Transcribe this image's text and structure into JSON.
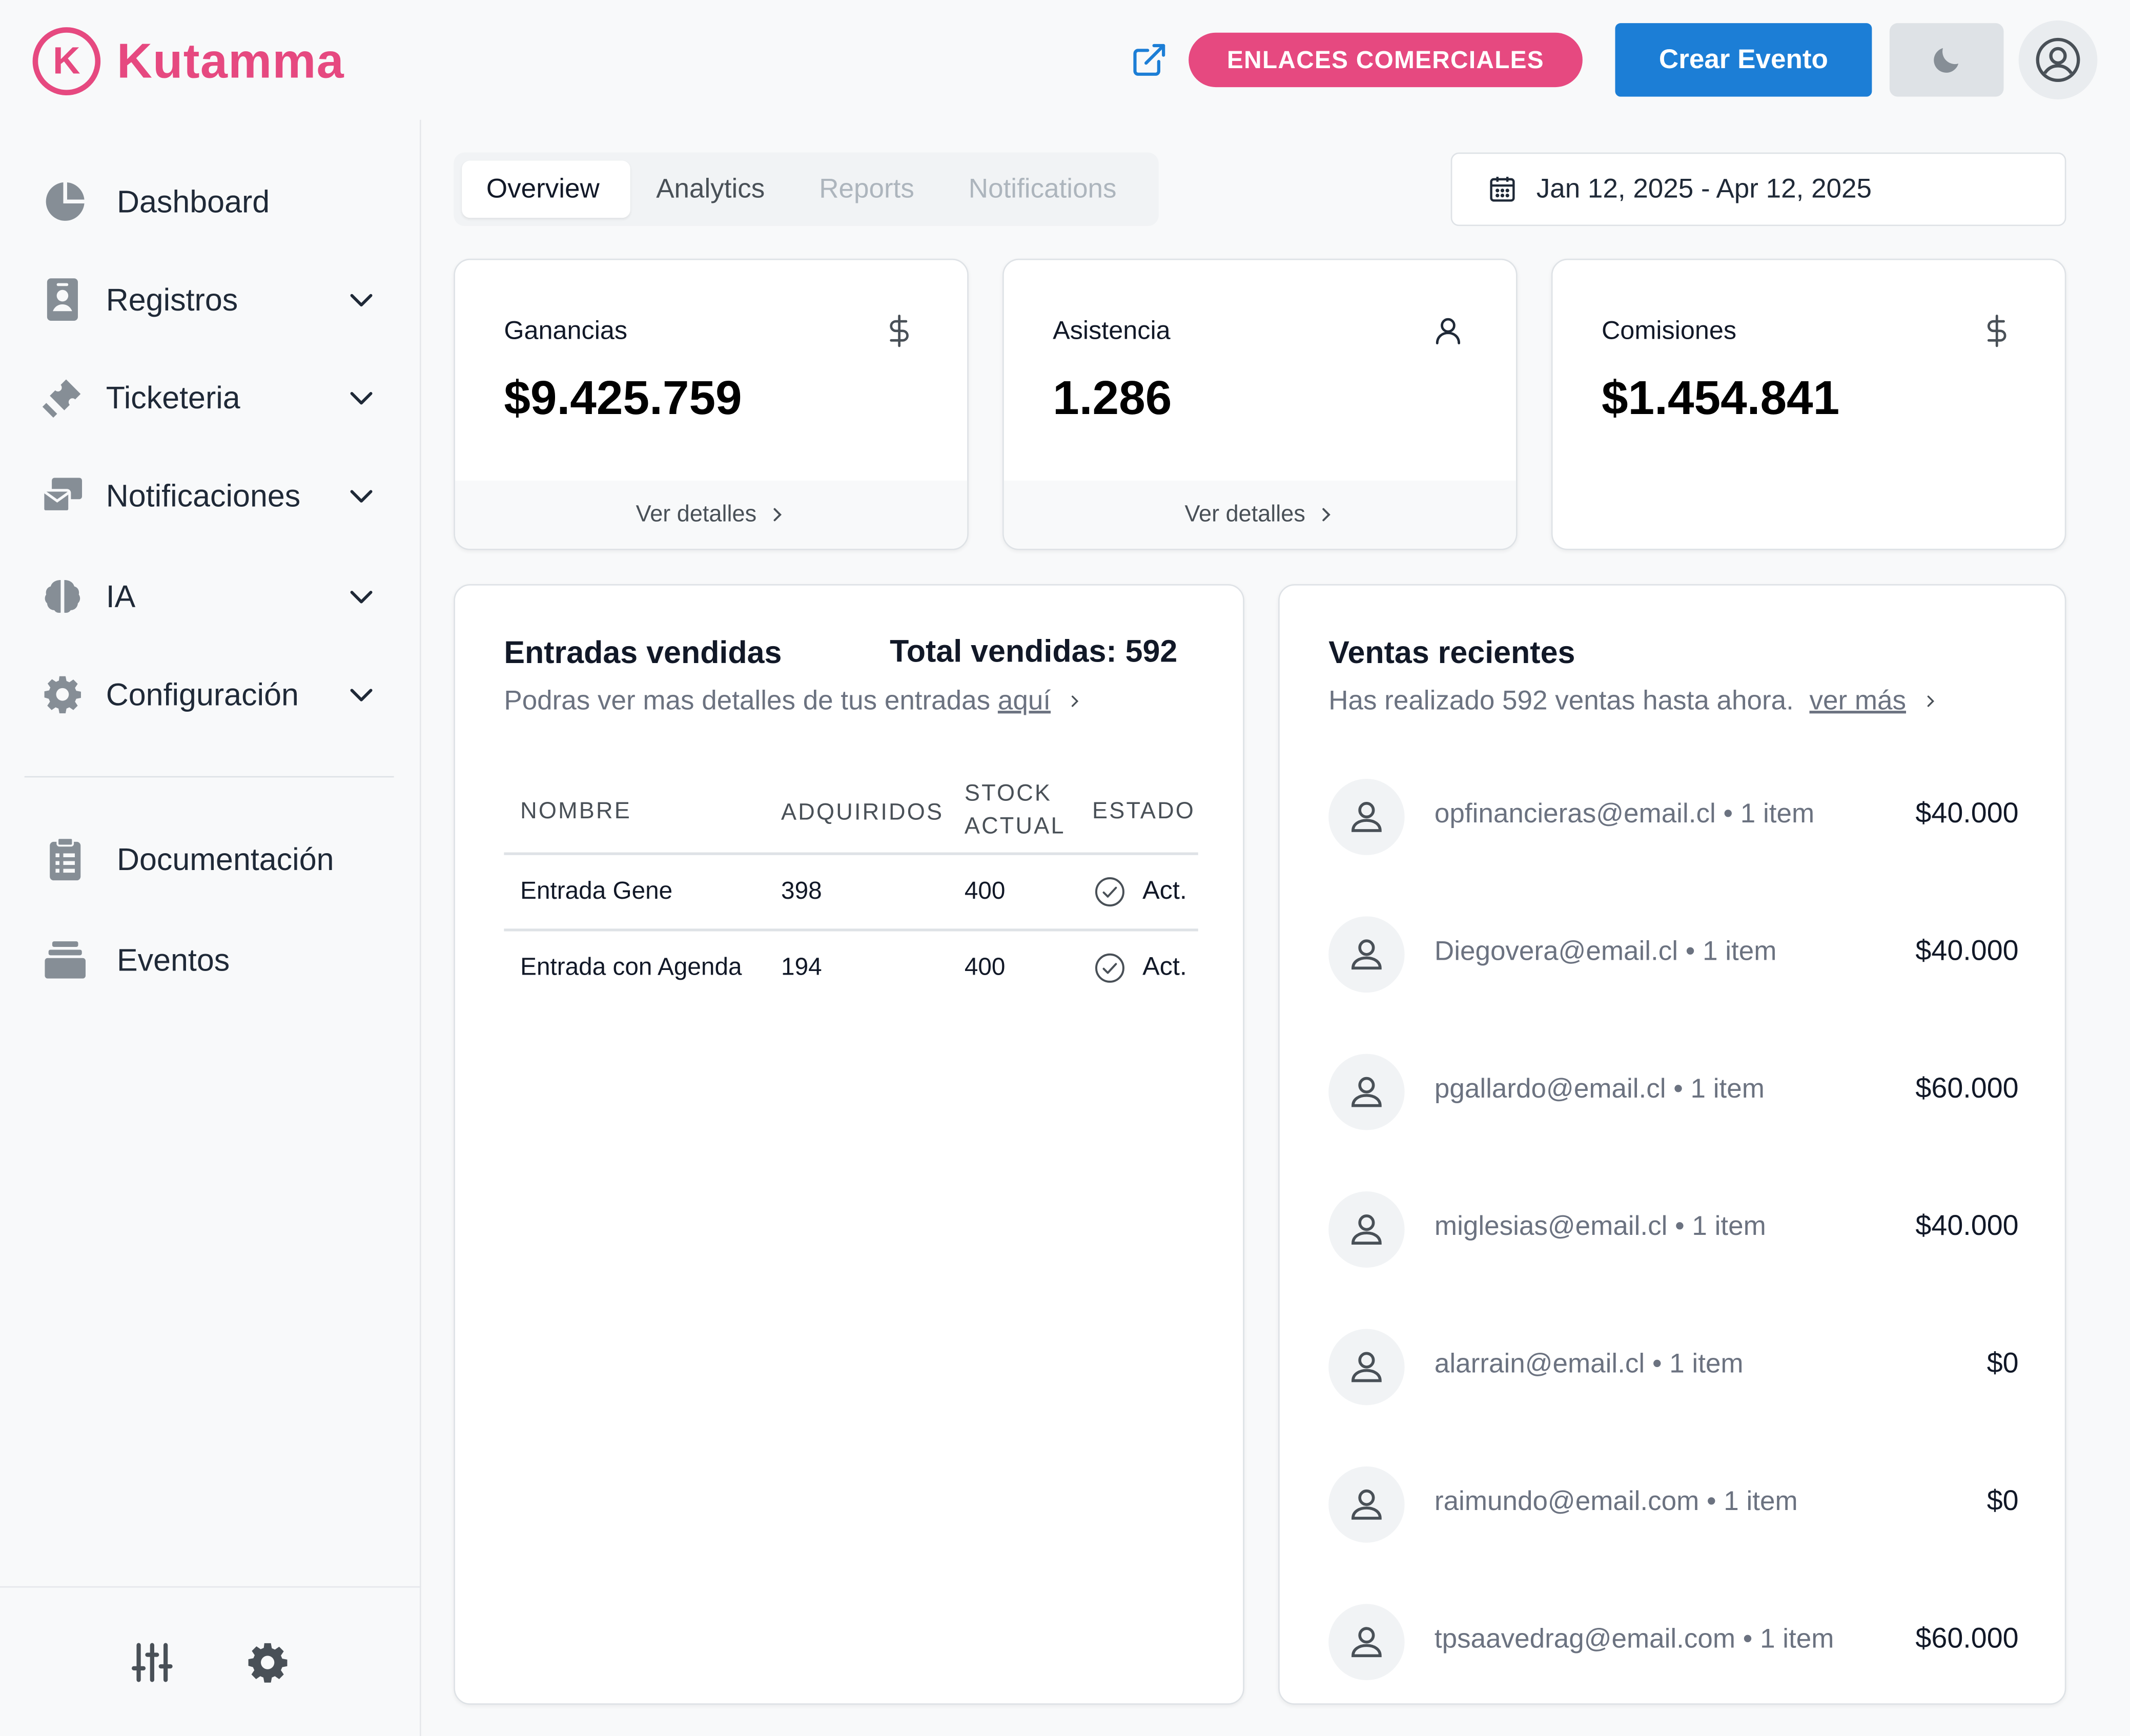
{
  "header": {
    "brand": "Kutamma",
    "brand_initial": "K",
    "enlaces_label": "ENLACES COMERCIALES",
    "crear_label": "Crear Evento"
  },
  "colors": {
    "brand": "#e64980",
    "primary": "#1c7ed6",
    "background": "#f8f9fa"
  },
  "sidebar": {
    "items": [
      {
        "label": "Dashboard",
        "icon": "pie-chart-icon"
      },
      {
        "label": "Registros",
        "icon": "id-badge-icon"
      },
      {
        "label": "Ticketeria",
        "icon": "ticket-icon"
      },
      {
        "label": "Notificaciones",
        "icon": "mail-stack-icon"
      },
      {
        "label": "IA",
        "icon": "brain-icon"
      },
      {
        "label": "Configuración",
        "icon": "gear-icon"
      }
    ],
    "secondary": [
      {
        "label": "Documentación",
        "icon": "clipboard-icon"
      },
      {
        "label": "Eventos",
        "icon": "inbox-stack-icon"
      }
    ]
  },
  "tabs": [
    "Overview",
    "Analytics",
    "Reports",
    "Notifications"
  ],
  "date_range": "Jan 12, 2025 - Apr 12, 2025",
  "stats": [
    {
      "title": "Ganancias",
      "value": "$9.425.759",
      "icon": "dollar-icon",
      "footer": "Ver detalles"
    },
    {
      "title": "Asistencia",
      "value": "1.286",
      "icon": "user-icon",
      "footer": "Ver detalles"
    },
    {
      "title": "Comisiones",
      "value": "$1.454.841",
      "icon": "dollar-icon"
    }
  ],
  "entradas": {
    "title": "Entradas vendidas",
    "total": "Total vendidas: 592",
    "subtitle": "Podras ver mas detalles de tus entradas",
    "link": "aquí",
    "columns": [
      "NOMBRE",
      "ADQUIRIDOS",
      "STOCK",
      "ACTUAL",
      "ESTADO"
    ],
    "rows": [
      {
        "nombre": "Entrada Gene",
        "adquiridos": "398",
        "stock": "400",
        "estado": "Act."
      },
      {
        "nombre": "Entrada con Agenda",
        "adquiridos": "194",
        "stock": "400",
        "estado": "Act."
      }
    ]
  },
  "ventas": {
    "title": "Ventas recientes",
    "subtitle": "Has realizado 592 ventas hasta ahora.",
    "link": "ver más",
    "items": [
      {
        "email": "opfinancieras@email.cl • 1 item",
        "amount": "$40.000"
      },
      {
        "email": "Diegovera@email.cl • 1 item",
        "amount": "$40.000"
      },
      {
        "email": "pgallardo@email.cl • 1 item",
        "amount": "$60.000"
      },
      {
        "email": "miglesias@email.cl • 1 item",
        "amount": "$40.000"
      },
      {
        "email": "alarrain@email.cl • 1 item",
        "amount": "$0"
      },
      {
        "email": "raimundo@email.com • 1 item",
        "amount": "$0"
      },
      {
        "email": "tpsaavedrag@email.com • 1 item",
        "amount": "$60.000"
      }
    ]
  }
}
